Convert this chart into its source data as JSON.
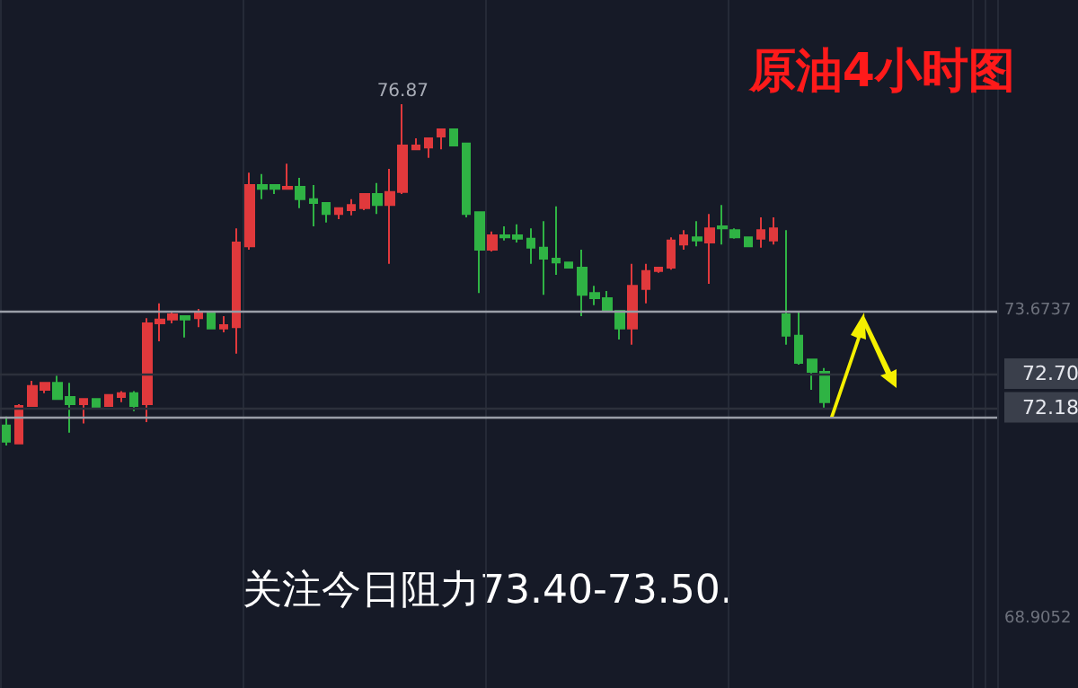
{
  "chart_data": {
    "type": "candlestick",
    "title": "原油4小时图",
    "annotations": [
      {
        "text": "76.87",
        "y": 76.87
      },
      "关注今日阻力73.40-73.50."
    ],
    "categories": [
      null,
      null,
      null,
      null,
      null,
      null,
      null,
      null,
      null,
      null,
      null,
      null,
      null,
      null,
      null,
      null,
      null,
      null,
      null,
      null,
      null,
      null,
      null,
      null,
      null,
      null,
      null,
      null,
      null,
      null,
      null,
      null,
      null,
      null,
      null,
      null,
      null,
      null,
      null,
      null,
      null,
      null,
      null,
      null,
      null,
      null,
      null,
      null,
      null,
      null,
      null,
      null,
      null,
      null,
      null,
      null,
      null,
      null,
      null,
      null,
      null,
      null,
      null,
      null,
      null,
      null,
      null,
      null,
      null,
      null,
      null,
      null,
      null,
      null,
      null,
      null,
      null,
      null
    ],
    "ohlc": [
      [
        71.9,
        72.04,
        71.59,
        71.65
      ],
      [
        71.62,
        72.23,
        71.62,
        72.2
      ],
      [
        72.2,
        72.59,
        72.2,
        72.51
      ],
      [
        72.45,
        72.56,
        72.4,
        72.56
      ],
      [
        72.56,
        72.67,
        72.31,
        72.31
      ],
      [
        72.34,
        72.56,
        71.79,
        72.23
      ],
      [
        72.23,
        72.31,
        71.93,
        72.31
      ],
      [
        72.31,
        72.31,
        72.17,
        72.17
      ],
      [
        72.2,
        72.37,
        72.2,
        72.37
      ],
      [
        72.34,
        72.43,
        72.26,
        72.4
      ],
      [
        72.4,
        72.43,
        72.12,
        72.2
      ],
      [
        72.23,
        73.56,
        71.95,
        73.48
      ],
      [
        73.48,
        73.79,
        73.2,
        73.54
      ],
      [
        73.54,
        73.65,
        73.48,
        73.62
      ],
      [
        73.59,
        73.59,
        73.26,
        73.54
      ],
      [
        73.56,
        73.7,
        73.42,
        73.65
      ],
      [
        73.65,
        73.65,
        73.4,
        73.4
      ],
      [
        73.4,
        73.59,
        73.34,
        73.45
      ],
      [
        73.42,
        74.95,
        73.01,
        74.73
      ],
      [
        74.67,
        75.81,
        74.62,
        75.62
      ],
      [
        75.62,
        75.79,
        75.4,
        75.56
      ],
      [
        75.62,
        75.62,
        75.48,
        75.56
      ],
      [
        75.56,
        75.95,
        75.56,
        75.59
      ],
      [
        75.59,
        75.73,
        75.26,
        75.4
      ],
      [
        75.4,
        75.62,
        74.98,
        75.34
      ],
      [
        75.34,
        75.34,
        75.04,
        75.17
      ],
      [
        75.17,
        75.26,
        75.09,
        75.26
      ],
      [
        75.23,
        75.4,
        75.15,
        75.31
      ],
      [
        75.26,
        75.48,
        75.23,
        75.48
      ],
      [
        75.48,
        75.65,
        75.17,
        75.31
      ],
      [
        75.31,
        75.87,
        74.4,
        75.51
      ],
      [
        75.51,
        76.87,
        75.48,
        76.23
      ],
      [
        76.17,
        76.34,
        76.17,
        76.23
      ],
      [
        76.2,
        76.34,
        76.04,
        76.34
      ],
      [
        76.37,
        76.48,
        76.17,
        76.48
      ],
      [
        76.48,
        76.48,
        76.23,
        76.23
      ],
      [
        76.26,
        76.26,
        75.12,
        75.17
      ],
      [
        75.2,
        75.2,
        73.95,
        74.62
      ],
      [
        74.62,
        74.9,
        74.59,
        74.84
      ],
      [
        74.84,
        74.98,
        74.76,
        74.81
      ],
      [
        74.84,
        75.01,
        74.73,
        74.79
      ],
      [
        74.79,
        74.95,
        74.4,
        74.65
      ],
      [
        74.65,
        75.06,
        73.92,
        74.48
      ],
      [
        74.48,
        75.29,
        74.23,
        74.42
      ],
      [
        74.42,
        74.42,
        74.34,
        74.34
      ],
      [
        74.34,
        74.62,
        73.59,
        73.92
      ],
      [
        73.95,
        74.06,
        73.76,
        73.87
      ],
      [
        73.87,
        73.98,
        73.65,
        73.67
      ],
      [
        73.67,
        73.67,
        73.23,
        73.4
      ],
      [
        73.4,
        74.4,
        73.15,
        74.06
      ],
      [
        74.01,
        74.4,
        73.79,
        74.29
      ],
      [
        74.29,
        74.34,
        74.26,
        74.34
      ],
      [
        74.34,
        74.81,
        74.31,
        74.76
      ],
      [
        74.7,
        74.92,
        74.62,
        74.84
      ],
      [
        74.81,
        75.06,
        74.67,
        74.76
      ],
      [
        74.73,
        75.17,
        74.09,
        74.95
      ],
      [
        74.98,
        75.31,
        74.7,
        74.95
      ],
      [
        74.92,
        74.95,
        74.79,
        74.81
      ],
      [
        74.81,
        74.81,
        74.67,
        74.67
      ],
      [
        74.79,
        75.12,
        74.65,
        74.92
      ],
      [
        74.76,
        75.12,
        74.7,
        74.95
      ],
      [
        73.62,
        74.92,
        73.15,
        73.29
      ],
      [
        73.29,
        73.67,
        72.84,
        72.87
      ],
      [
        72.92,
        72.92,
        72.45,
        72.73
      ],
      [
        72.73,
        72.79,
        72.17,
        72.26
      ],
      null,
      null,
      null,
      null,
      null,
      null,
      null,
      null,
      null,
      null,
      null,
      null,
      null
    ],
    "ylim": [
      67.84,
      78.48
    ],
    "yticks": [
      68.9052,
      73.6737
    ],
    "ref_lines": [
      {
        "axis": "y",
        "value": 73.6737,
        "label": null,
        "color": "#9a9ea8"
      },
      {
        "axis": "y",
        "value": 72.04,
        "label": null,
        "color": "#9a9ea8"
      },
      {
        "axis": "y",
        "value": 72.7,
        "label": "72.70",
        "color": "#2c303b"
      },
      {
        "axis": "y",
        "value": 72.18,
        "label": "72.18",
        "color": "#2c303b"
      }
    ],
    "grid": "x",
    "tick_labels": "y"
  }
}
